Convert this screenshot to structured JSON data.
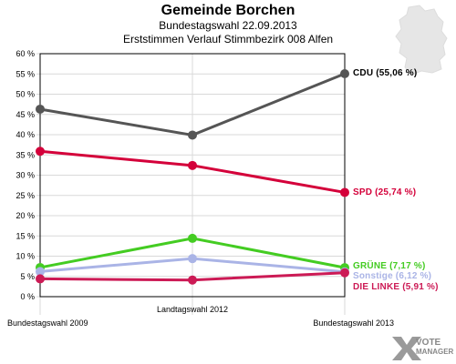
{
  "header": {
    "title": "Gemeinde Borchen",
    "subtitle1": "Bundestagswahl 22.09.2013",
    "subtitle2": "Erststimmen Verlauf Stimmbezirk 008 Alfen"
  },
  "logo": {
    "line1": "VOTE",
    "line2": "MANAGER",
    "icon": "vote-manager-x-icon"
  },
  "map_icon": "germany-map-icon",
  "chart_data": {
    "type": "line",
    "title": "Gemeinde Borchen",
    "categories": [
      "Bundestagswahl 2009",
      "Landtagswahl 2012",
      "Bundestagswahl 2013"
    ],
    "ylim": [
      0,
      60
    ],
    "yticks": [
      "0 %",
      "5 %",
      "10 %",
      "15 %",
      "20 %",
      "25 %",
      "30 %",
      "35 %",
      "40 %",
      "45 %",
      "50 %",
      "55 %",
      "60 %"
    ],
    "ytick_values": [
      0,
      5,
      10,
      15,
      20,
      25,
      30,
      35,
      40,
      45,
      50,
      55,
      60
    ],
    "grid": true,
    "series": [
      {
        "name": "CDU",
        "label": "CDU (55,06 %)",
        "color": "#555555",
        "label_color": "#000000",
        "values": [
          46.3,
          39.9,
          55.06
        ]
      },
      {
        "name": "SPD",
        "label": "SPD (25,74 %)",
        "color": "#d4003a",
        "label_color": "#d4003a",
        "values": [
          35.9,
          32.4,
          25.74
        ]
      },
      {
        "name": "GRÜNE",
        "label": "GRÜNE (7,17 %)",
        "color": "#44cc22",
        "label_color": "#44cc22",
        "values": [
          7.2,
          14.4,
          7.17
        ]
      },
      {
        "name": "Sonstige",
        "label": "Sonstige (6,12 %)",
        "color": "#aab4e6",
        "label_color": "#aab4e6",
        "values": [
          6.2,
          9.4,
          6.12
        ]
      },
      {
        "name": "DIE LINKE",
        "label": "DIE LINKE (5,91 %)",
        "color": "#cc1a55",
        "label_color": "#cc1a55",
        "values": [
          4.4,
          4.1,
          5.91
        ]
      }
    ]
  }
}
